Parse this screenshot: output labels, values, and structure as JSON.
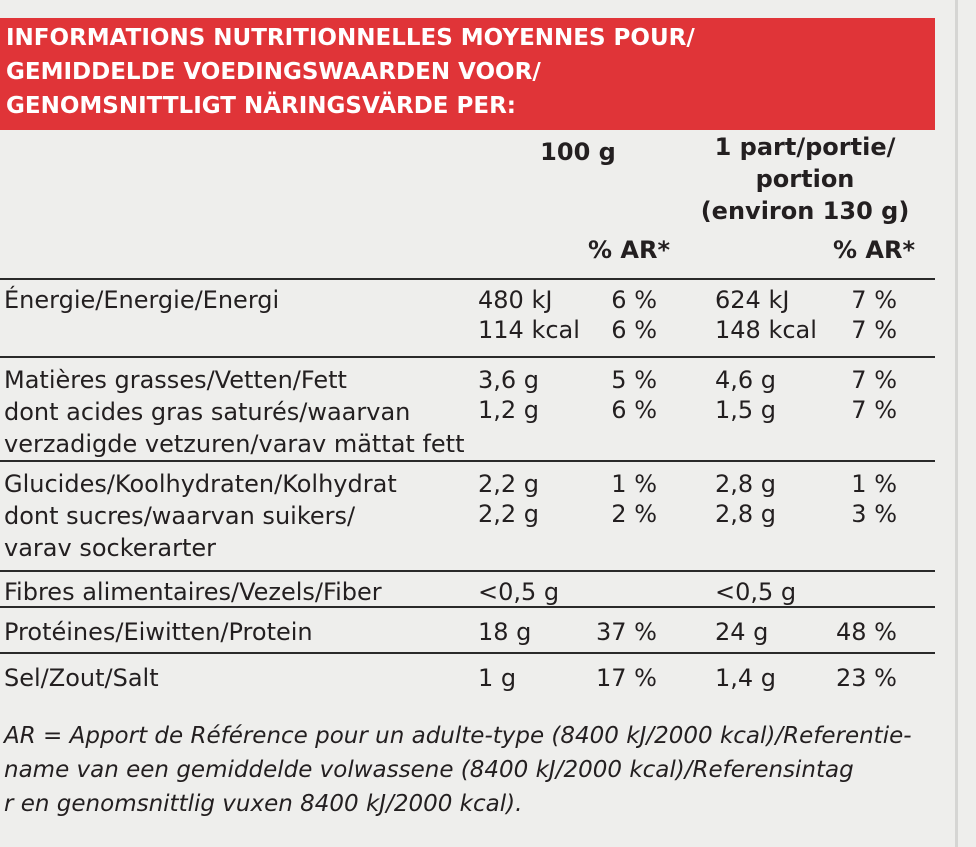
{
  "header": {
    "lines": [
      "INFORMATIONS NUTRITIONNELLES MOYENNES POUR/",
      "GEMIDDELDE VOEDINGSWAARDEN VOOR/",
      "GENOMSNITTLIGT NÄRINGSVÄRDE PER:"
    ]
  },
  "columns": {
    "per_100g": "100 g",
    "per_portion": [
      "1 part/portie/",
      "portion",
      "(environ 130 g)"
    ],
    "ar_100g": "% AR*",
    "ar_portion": "% AR*"
  },
  "rows": [
    {
      "label": [
        "Énergie/Energie/Energi"
      ],
      "values": [
        [
          "480 kJ",
          "6 %",
          "624 kJ",
          "7 %"
        ],
        [
          "114 kcal",
          "6 %",
          "148 kcal",
          "7 %"
        ]
      ]
    },
    {
      "label": [
        "Matières grasses/Vetten/Fett",
        "dont acides gras saturés/waarvan",
        "verzadigde vetzuren/varav mättat fett"
      ],
      "values": [
        [
          "3,6 g",
          "5 %",
          "4,6 g",
          "7 %"
        ],
        [
          "1,2 g",
          "6 %",
          "1,5 g",
          "7 %"
        ]
      ]
    },
    {
      "label": [
        "Glucides/Koolhydraten/Kolhydrat",
        "dont sucres/waarvan suikers/",
        "varav sockerarter"
      ],
      "values": [
        [
          "2,2 g",
          "1 %",
          "2,8 g",
          "1 %"
        ],
        [
          "2,2 g",
          "2 %",
          "2,8 g",
          "3 %"
        ]
      ]
    },
    {
      "label": [
        "Fibres alimentaires/Vezels/Fiber"
      ],
      "values": [
        [
          "<0,5 g",
          null,
          "<0,5 g",
          null
        ]
      ]
    },
    {
      "label": [
        "Protéines/Eiwitten/Protein"
      ],
      "values": [
        [
          "18 g",
          "37 %",
          "24 g",
          "48 %"
        ]
      ]
    },
    {
      "label": [
        "Sel/Zout/Salt"
      ],
      "values": [
        [
          "1 g",
          "17 %",
          "1,4 g",
          "23 %"
        ]
      ]
    }
  ],
  "footnote": [
    "AR = Apport de Référence pour un adulte-type (8400 kJ/2000 kcal)/Referentie-",
    "name van een gemiddelde volwassene (8400 kJ/2000 kcal)/Referensintag",
    "r en genomsnittlig vuxen 8400 kJ/2000 kcal)."
  ]
}
